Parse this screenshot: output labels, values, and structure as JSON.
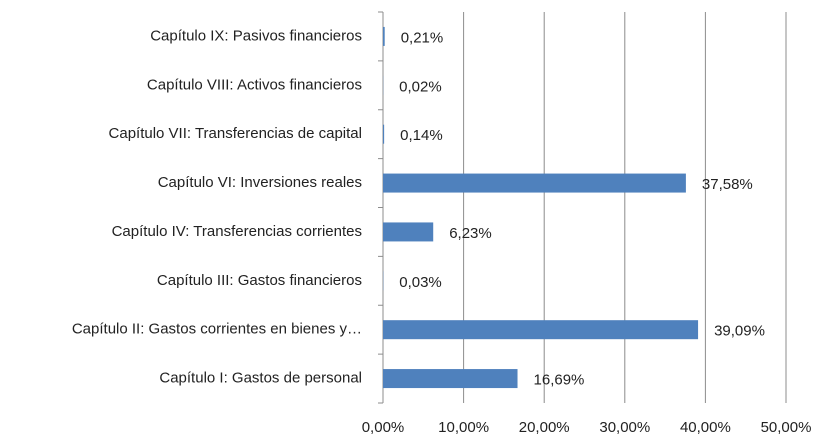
{
  "chart_data": {
    "type": "bar",
    "orientation": "horizontal",
    "categories": [
      "Capítulo IX: Pasivos financieros",
      "Capítulo VIII: Activos financieros",
      "Capítulo VII: Transferencias de capital",
      "Capítulo VI: Inversiones reales",
      "Capítulo IV: Transferencias corrientes",
      "Capítulo III: Gastos financieros",
      "Capítulo II: Gastos corrientes en bienes y…",
      "Capítulo I: Gastos de personal"
    ],
    "values": [
      0.21,
      0.02,
      0.14,
      37.58,
      6.23,
      0.03,
      39.09,
      16.69
    ],
    "value_labels": [
      "0,21%",
      "0,02%",
      "0,14%",
      "37,58%",
      "6,23%",
      "0,03%",
      "39,09%",
      "16,69%"
    ],
    "color": "#4f81bd",
    "xlim": [
      0,
      50
    ],
    "xticks": [
      {
        "value": 0,
        "label": "0,00%"
      },
      {
        "value": 10,
        "label": "10,00%"
      },
      {
        "value": 20,
        "label": "20,00%"
      },
      {
        "value": 30,
        "label": "30,00%"
      },
      {
        "value": 40,
        "label": "40,00%"
      },
      {
        "value": 50,
        "label": "50,00%"
      }
    ],
    "grid": true
  }
}
